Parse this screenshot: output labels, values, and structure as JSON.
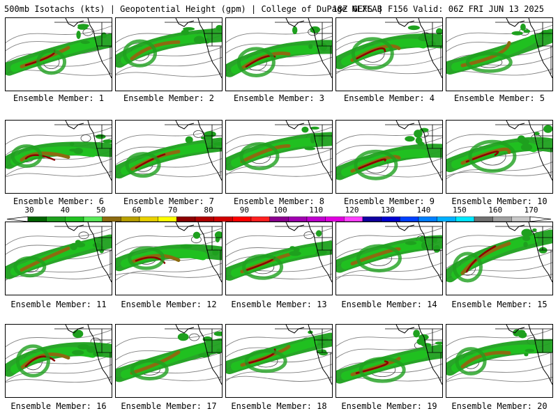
{
  "header": {
    "title_left": "500mb Isotachs (kts) | Geopotential Height (gpm) | College of DuPage NEXLAB",
    "title_right": "18Z GEFS | F156 Valid: 06Z FRI JUN 13 2025"
  },
  "members": [
    {
      "label": "Ensemble Member: 1"
    },
    {
      "label": "Ensemble Member: 2"
    },
    {
      "label": "Ensemble Member: 3"
    },
    {
      "label": "Ensemble Member: 4"
    },
    {
      "label": "Ensemble Member: 5"
    },
    {
      "label": "Ensemble Member: 6"
    },
    {
      "label": "Ensemble Member: 7"
    },
    {
      "label": "Ensemble Member: 8"
    },
    {
      "label": "Ensemble Member: 9"
    },
    {
      "label": "Ensemble Member: 10"
    },
    {
      "label": "Ensemble Member: 11"
    },
    {
      "label": "Ensemble Member: 12"
    },
    {
      "label": "Ensemble Member: 13"
    },
    {
      "label": "Ensemble Member: 14"
    },
    {
      "label": "Ensemble Member: 15"
    },
    {
      "label": "Ensemble Member: 16"
    },
    {
      "label": "Ensemble Member: 17"
    },
    {
      "label": "Ensemble Member: 18"
    },
    {
      "label": "Ensemble Member: 19"
    },
    {
      "label": "Ensemble Member: 20"
    }
  ],
  "colorbar": {
    "ticks": [
      "30",
      "40",
      "50",
      "60",
      "70",
      "80",
      "90",
      "100",
      "110",
      "120",
      "130",
      "140",
      "150",
      "160",
      "170"
    ],
    "colors": [
      "#006400",
      "#1ea01e",
      "#20c020",
      "#58e858",
      "#8c6a10",
      "#b8a000",
      "#e8d000",
      "#ffff00",
      "#8c0000",
      "#b00000",
      "#d00000",
      "#ff0000",
      "#ff2020",
      "#8c0090",
      "#a000b0",
      "#c000d0",
      "#e000e0",
      "#ff40ff",
      "#1000a0",
      "#0000d0",
      "#0040ff",
      "#0080ff",
      "#00b0ff",
      "#00e8ff",
      "#707070",
      "#a0a0a0",
      "#c8c8c8"
    ]
  }
}
